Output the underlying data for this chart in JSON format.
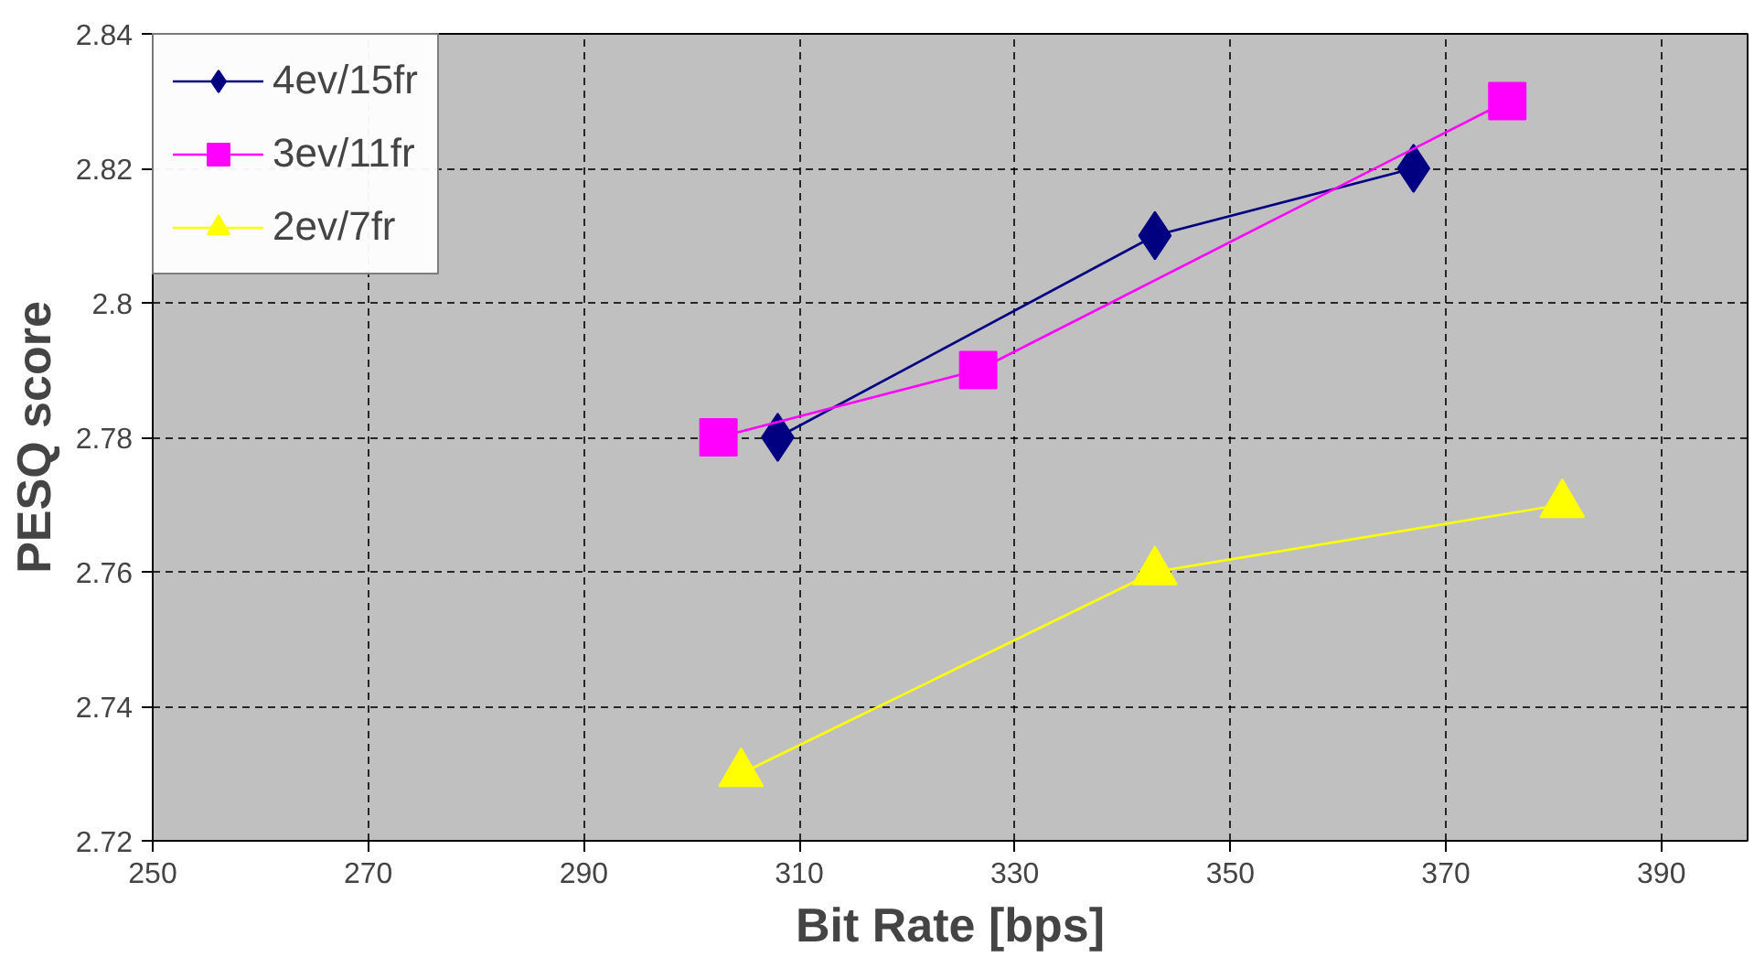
{
  "chart_data": {
    "type": "line",
    "xlabel": "Bit Rate [bps]",
    "ylabel": "PESQ score",
    "xlim": [
      250,
      398
    ],
    "xticks": [
      250,
      270,
      290,
      310,
      330,
      350,
      370,
      390
    ],
    "ylim": [
      2.72,
      2.84
    ],
    "yticks": [
      2.72,
      2.74,
      2.76,
      2.78,
      2.8,
      2.82,
      2.84
    ],
    "grid": true,
    "legend": "top left",
    "series": [
      {
        "name": "4ev/15fr",
        "color": "#000080",
        "marker": "diamond",
        "x": [
          308,
          343,
          367
        ],
        "values": [
          2.78,
          2.81,
          2.82
        ]
      },
      {
        "name": "3ev/11fr",
        "color": "#ff00ff",
        "marker": "square",
        "x": [
          302.5,
          326.6,
          375.7
        ],
        "values": [
          2.78,
          2.79,
          2.83
        ]
      },
      {
        "name": "2ev/7fr",
        "color": "#ffff00",
        "marker": "triangle",
        "x": [
          304.6,
          343,
          380.8
        ],
        "values": [
          2.73,
          2.76,
          2.77
        ]
      }
    ]
  }
}
